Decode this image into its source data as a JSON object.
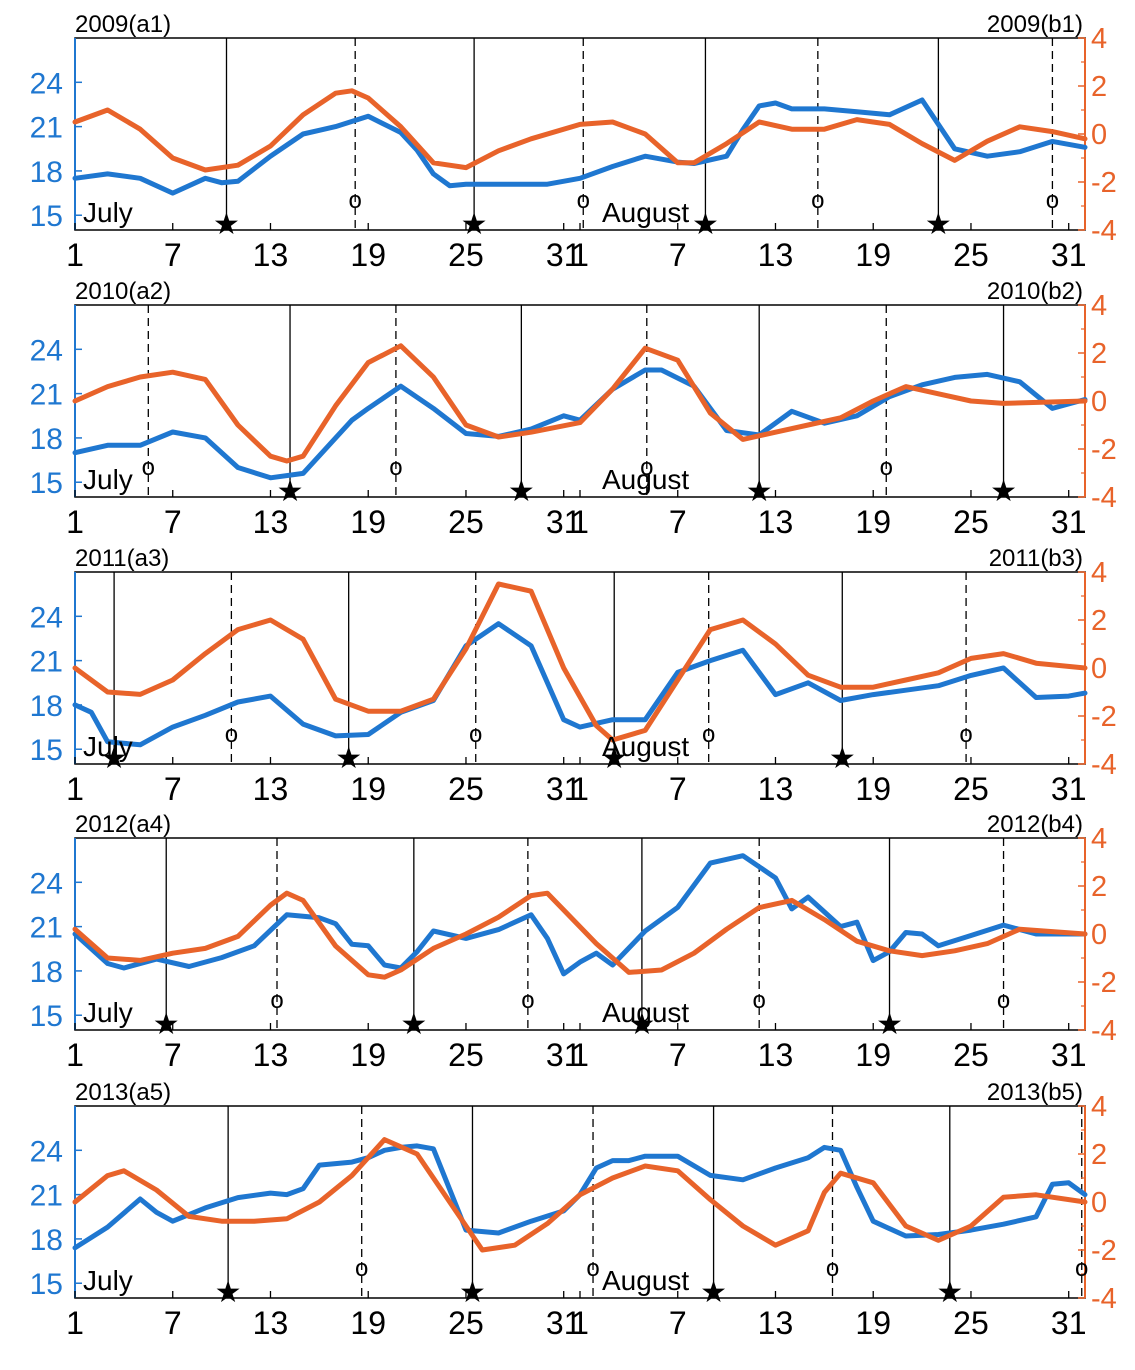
{
  "figure": {
    "month1": "July",
    "month2": "August"
  },
  "chart_data": [
    {
      "type": "line",
      "title_left": "2009(a1)",
      "title_right": "2009(b1)",
      "x_ticks": [
        "1",
        "7",
        "13",
        "19",
        "25",
        "31",
        "1",
        "7",
        "13",
        "19",
        "25",
        "31"
      ],
      "y_left_ticks": [
        15,
        18,
        21,
        24
      ],
      "y_right_ticks": [
        -4,
        -2,
        0,
        2,
        4
      ],
      "ylim_left": [
        14,
        27
      ],
      "ylim_right": [
        -4,
        4
      ],
      "solid_lines": [
        9.3,
        24.5,
        38.7,
        53
      ],
      "dashed_lines": [
        17.2,
        31.2,
        45.6,
        60
      ],
      "star_marks": [
        9.3,
        24.5,
        38.7,
        53
      ],
      "o_marks": [
        17.2,
        31.2,
        45.6,
        60
      ],
      "series": [
        {
          "color": "#1f77d0",
          "axis": "left",
          "x": [
            0,
            2,
            4,
            6,
            8,
            9,
            10,
            12,
            14,
            16,
            18,
            20,
            21,
            22,
            23,
            24,
            25,
            27,
            29,
            31,
            33,
            35,
            37,
            38,
            40,
            41,
            42,
            43,
            44,
            46,
            48,
            50,
            52,
            54,
            56,
            58,
            60,
            62
          ],
          "y": [
            17.5,
            17.8,
            17.5,
            16.5,
            17.5,
            17.2,
            17.3,
            19,
            20.5,
            21,
            21.7,
            20.6,
            19.4,
            17.8,
            17,
            17.1,
            17.1,
            17.1,
            17.1,
            17.5,
            18.3,
            19,
            18.6,
            18.5,
            19,
            20.8,
            22.4,
            22.6,
            22.2,
            22.2,
            22,
            21.8,
            22.8,
            19.5,
            19,
            19.3,
            20,
            19.6
          ]
        },
        {
          "color": "#e8632a",
          "axis": "right",
          "x": [
            0,
            2,
            4,
            6,
            8,
            10,
            12,
            14,
            16,
            17,
            18,
            20,
            22,
            24,
            26,
            28,
            31,
            33,
            35,
            37,
            38,
            40,
            42,
            44,
            46,
            48,
            50,
            52,
            54,
            56,
            58,
            60,
            62
          ],
          "y": [
            0.5,
            1,
            0.2,
            -1,
            -1.5,
            -1.3,
            -0.5,
            0.8,
            1.7,
            1.8,
            1.5,
            0.3,
            -1.2,
            -1.4,
            -0.7,
            -0.2,
            0.4,
            0.5,
            0,
            -1.2,
            -1.2,
            -0.4,
            0.5,
            0.2,
            0.2,
            0.6,
            0.4,
            -0.4,
            -1.1,
            -0.3,
            0.3,
            0.1,
            -0.2
          ]
        }
      ]
    },
    {
      "type": "line",
      "title_left": "2010(a2)",
      "title_right": "2010(b2)",
      "x_ticks": [
        "1",
        "7",
        "13",
        "19",
        "25",
        "31",
        "1",
        "7",
        "13",
        "19",
        "25",
        "31"
      ],
      "y_left_ticks": [
        15,
        18,
        21,
        24
      ],
      "y_right_ticks": [
        -4,
        -2,
        0,
        2,
        4
      ],
      "ylim_left": [
        14,
        27
      ],
      "ylim_right": [
        -4,
        4
      ],
      "solid_lines": [
        13.2,
        27.4,
        42,
        57
      ],
      "dashed_lines": [
        4.5,
        19.7,
        35.1,
        49.8
      ],
      "star_marks": [
        13.2,
        27.4,
        42,
        57
      ],
      "o_marks": [
        4.5,
        19.7,
        35.1,
        49.8
      ],
      "series": [
        {
          "color": "#1f77d0",
          "axis": "left",
          "x": [
            0,
            2,
            4,
            6,
            8,
            10,
            12,
            14,
            16,
            17,
            18,
            20,
            22,
            24,
            26,
            28,
            30,
            31,
            33,
            35,
            36,
            38,
            40,
            42,
            44,
            46,
            48,
            50,
            52,
            54,
            56,
            58,
            60,
            62
          ],
          "y": [
            17,
            17.5,
            17.5,
            18.4,
            18,
            16,
            15.3,
            15.6,
            18,
            19.2,
            20,
            21.5,
            20,
            18.3,
            18.1,
            18.6,
            19.5,
            19.2,
            21.3,
            22.6,
            22.6,
            21.5,
            18.5,
            18.2,
            19.8,
            19,
            19.5,
            20.8,
            21.6,
            22.1,
            22.3,
            21.8,
            20,
            20.6
          ]
        },
        {
          "color": "#e8632a",
          "axis": "right",
          "x": [
            0,
            2,
            4,
            6,
            8,
            10,
            12,
            13,
            14,
            16,
            18,
            20,
            22,
            24,
            26,
            28,
            31,
            33,
            35,
            37,
            39,
            41,
            43,
            45,
            47,
            49,
            51,
            53,
            55,
            57,
            62
          ],
          "y": [
            0,
            0.6,
            1,
            1.2,
            0.9,
            -1,
            -2.3,
            -2.5,
            -2.3,
            -0.2,
            1.6,
            2.3,
            1,
            -1,
            -1.5,
            -1.3,
            -0.9,
            0.5,
            2.2,
            1.7,
            -0.5,
            -1.6,
            -1.3,
            -1,
            -0.7,
            0,
            0.6,
            0.3,
            0,
            -0.1,
            0
          ]
        }
      ]
    },
    {
      "type": "line",
      "title_left": "2011(a3)",
      "title_right": "2011(b3)",
      "x_ticks": [
        "1",
        "7",
        "13",
        "19",
        "25",
        "31",
        "1",
        "7",
        "13",
        "19",
        "25",
        "31"
      ],
      "y_left_ticks": [
        15,
        18,
        21,
        24
      ],
      "y_right_ticks": [
        -4,
        -2,
        0,
        2,
        4
      ],
      "ylim_left": [
        14,
        27
      ],
      "ylim_right": [
        -4,
        4
      ],
      "solid_lines": [
        2.4,
        16.8,
        33.1,
        47.1
      ],
      "dashed_lines": [
        9.6,
        24.6,
        38.9,
        54.7
      ],
      "star_marks": [
        2.4,
        16.8,
        33.1,
        47.1
      ],
      "o_marks": [
        9.6,
        24.6,
        38.9,
        54.7
      ],
      "series": [
        {
          "color": "#1f77d0",
          "axis": "left",
          "x": [
            0,
            1,
            2,
            4,
            6,
            8,
            10,
            12,
            14,
            16,
            18,
            20,
            22,
            24,
            26,
            28,
            30,
            31,
            33,
            35,
            37,
            39,
            41,
            43,
            45,
            47,
            49,
            51,
            53,
            55,
            57,
            59,
            61,
            62
          ],
          "y": [
            18,
            17.5,
            15.5,
            15.3,
            16.5,
            17.3,
            18.2,
            18.6,
            16.7,
            15.9,
            16,
            17.5,
            18.3,
            22,
            23.5,
            22,
            17,
            16.5,
            17,
            17,
            20.2,
            21,
            21.7,
            18.7,
            19.5,
            18.3,
            18.7,
            19,
            19.3,
            20,
            20.5,
            18.5,
            18.6,
            18.8
          ]
        },
        {
          "color": "#e8632a",
          "axis": "right",
          "x": [
            0,
            2,
            4,
            6,
            8,
            10,
            12,
            14,
            16,
            18,
            20,
            22,
            24,
            26,
            28,
            30,
            32,
            33,
            35,
            37,
            39,
            41,
            43,
            45,
            47,
            49,
            51,
            53,
            55,
            57,
            59,
            62
          ],
          "y": [
            0,
            -1,
            -1.1,
            -0.5,
            0.6,
            1.6,
            2,
            1.2,
            -1.3,
            -1.8,
            -1.8,
            -1.3,
            0.8,
            3.5,
            3.2,
            0,
            -2.4,
            -3,
            -2.6,
            -0.5,
            1.6,
            2,
            1,
            -0.3,
            -0.8,
            -0.8,
            -0.5,
            -0.2,
            0.4,
            0.6,
            0.2,
            0
          ]
        }
      ]
    },
    {
      "type": "line",
      "title_left": "2012(a4)",
      "title_right": "2012(b4)",
      "x_ticks": [
        "1",
        "7",
        "13",
        "19",
        "25",
        "31",
        "1",
        "7",
        "13",
        "19",
        "25",
        "31"
      ],
      "y_left_ticks": [
        15,
        18,
        21,
        24
      ],
      "y_right_ticks": [
        -4,
        -2,
        0,
        2,
        4
      ],
      "ylim_left": [
        14,
        27
      ],
      "ylim_right": [
        -4,
        4
      ],
      "solid_lines": [
        5.6,
        20.8,
        34.8,
        50
      ],
      "dashed_lines": [
        12.4,
        27.8,
        42,
        57
      ],
      "star_marks": [
        5.6,
        20.8,
        34.8,
        50
      ],
      "o_marks": [
        12.4,
        27.8,
        42,
        57
      ],
      "series": [
        {
          "color": "#1f77d0",
          "axis": "left",
          "x": [
            0,
            2,
            3,
            5,
            7,
            9,
            11,
            13,
            15,
            16,
            17,
            18,
            19,
            20,
            21,
            22,
            24,
            26,
            28,
            29,
            30,
            31,
            32,
            33,
            35,
            37,
            39,
            41,
            43,
            44,
            45,
            47,
            48,
            49,
            50,
            51,
            52,
            53,
            55,
            57,
            59,
            61,
            62
          ],
          "y": [
            20.5,
            18.5,
            18.2,
            18.8,
            18.3,
            18.9,
            19.7,
            21.8,
            21.6,
            21.2,
            19.8,
            19.7,
            18.4,
            18.2,
            19.3,
            20.7,
            20.2,
            20.8,
            21.8,
            20.2,
            17.8,
            18.6,
            19.2,
            18.4,
            20.7,
            22.3,
            25.3,
            25.8,
            24.3,
            22.2,
            23,
            21,
            21.3,
            18.7,
            19.3,
            20.6,
            20.5,
            19.7,
            20.4,
            21.1,
            20.5,
            20.5,
            20.5
          ]
        },
        {
          "color": "#e8632a",
          "axis": "right",
          "x": [
            0,
            2,
            4,
            6,
            8,
            10,
            12,
            13,
            14,
            16,
            18,
            19,
            20,
            22,
            24,
            26,
            28,
            29,
            30,
            32,
            34,
            36,
            38,
            40,
            42,
            44,
            46,
            48,
            50,
            52,
            54,
            56,
            58,
            60,
            62
          ],
          "y": [
            0.2,
            -1,
            -1.1,
            -0.8,
            -0.6,
            -0.1,
            1.2,
            1.7,
            1.4,
            -0.5,
            -1.7,
            -1.8,
            -1.5,
            -0.6,
            0,
            0.7,
            1.6,
            1.7,
            1,
            -0.4,
            -1.6,
            -1.5,
            -0.8,
            0.2,
            1.1,
            1.4,
            0.6,
            -0.3,
            -0.7,
            -0.9,
            -0.7,
            -0.4,
            0.2,
            0.1,
            0
          ]
        }
      ]
    },
    {
      "type": "line",
      "title_left": "2013(a5)",
      "title_right": "2013(b5)",
      "x_ticks": [
        "1",
        "7",
        "13",
        "19",
        "25",
        "31",
        "1",
        "7",
        "13",
        "19",
        "25",
        "31"
      ],
      "y_left_ticks": [
        15,
        18,
        21,
        24
      ],
      "y_right_ticks": [
        -4,
        -2,
        0,
        2,
        4
      ],
      "ylim_left": [
        14,
        27
      ],
      "ylim_right": [
        -4,
        4
      ],
      "solid_lines": [
        9.4,
        24.4,
        39.2,
        53.7
      ],
      "dashed_lines": [
        17.6,
        31.8,
        46.5,
        61.8
      ],
      "star_marks": [
        9.4,
        24.4,
        39.2,
        53.7
      ],
      "o_marks": [
        17.6,
        31.8,
        46.5,
        61.8
      ],
      "series": [
        {
          "color": "#1f77d0",
          "axis": "left",
          "x": [
            0,
            2,
            4,
            5,
            6,
            8,
            10,
            12,
            13,
            14,
            15,
            17,
            18,
            19,
            20,
            21,
            22,
            24,
            26,
            28,
            30,
            31,
            32,
            33,
            34,
            35,
            37,
            39,
            41,
            43,
            45,
            46,
            47,
            48,
            49,
            51,
            53,
            55,
            57,
            59,
            60,
            61,
            62
          ],
          "y": [
            17.4,
            18.8,
            20.7,
            19.8,
            19.2,
            20.1,
            20.8,
            21.1,
            21,
            21.4,
            23,
            23.2,
            23.5,
            24,
            24.2,
            24.3,
            24.1,
            18.6,
            18.4,
            19.2,
            19.9,
            21,
            22.8,
            23.3,
            23.3,
            23.6,
            23.6,
            22.3,
            22,
            22.8,
            23.5,
            24.2,
            24,
            21.5,
            19.2,
            18.2,
            18.3,
            18.6,
            19,
            19.5,
            21.7,
            21.8,
            21
          ]
        },
        {
          "color": "#e8632a",
          "axis": "right",
          "x": [
            0,
            2,
            3,
            5,
            7,
            9,
            11,
            13,
            15,
            17,
            19,
            21,
            23,
            25,
            27,
            29,
            31,
            33,
            35,
            37,
            39,
            41,
            43,
            45,
            46,
            47,
            49,
            51,
            53,
            55,
            57,
            59,
            62
          ],
          "y": [
            0,
            1.1,
            1.3,
            0.5,
            -0.6,
            -0.8,
            -0.8,
            -0.7,
            0,
            1.1,
            2.6,
            2,
            0,
            -2,
            -1.8,
            -0.9,
            0.3,
            1,
            1.5,
            1.3,
            0.1,
            -1,
            -1.8,
            -1.2,
            0.4,
            1.2,
            0.8,
            -1,
            -1.6,
            -1,
            0.2,
            0.3,
            0
          ]
        }
      ]
    }
  ]
}
